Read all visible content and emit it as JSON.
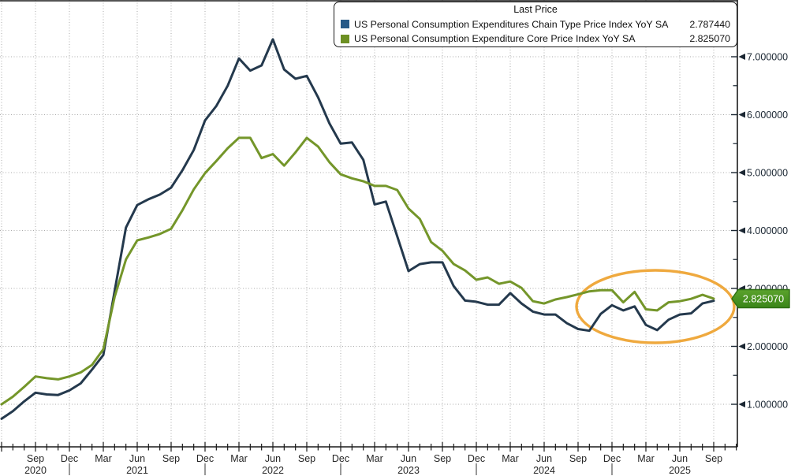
{
  "legend": {
    "title": "Last Price",
    "series": [
      {
        "label": "US Personal Consumption Expenditures Chain Type Price Index YoY SA",
        "value": "2.787440",
        "color": "#275a87"
      },
      {
        "label": "US Personal Consumption Expenditure Core Price Index YoY SA",
        "value": "2.825070",
        "color": "#6d9023"
      }
    ]
  },
  "price_tag": {
    "value": "2.825070",
    "fill_top": "#5ba32c",
    "fill_bottom": "#3a8519",
    "border": "#2d6e12"
  },
  "annotation": {
    "ellipse_color": "#efa93e"
  },
  "axis": {
    "y_labels": [
      "7.000000",
      "6.000000",
      "5.000000",
      "4.000000",
      "3.000000",
      "2.000000",
      "1.000000"
    ],
    "x_months": [
      "Sep",
      "Dec",
      "Mar",
      "Jun",
      "Sep",
      "Dec",
      "Mar",
      "Jun",
      "Sep",
      "Dec",
      "Mar",
      "Jun",
      "Sep",
      "Dec",
      "Mar",
      "Jun",
      "Sep",
      "Dec",
      "Mar",
      "Jun",
      "Sep"
    ],
    "x_years": [
      {
        "label": "2020",
        "tick": 1
      },
      {
        "label": "2021",
        "tick": 4
      },
      {
        "label": "2022",
        "tick": 8
      },
      {
        "label": "2023",
        "tick": 12
      },
      {
        "label": "2024",
        "tick": 16
      },
      {
        "label": "2025",
        "tick": 20
      }
    ],
    "year_divider_ticks": [
      2,
      6,
      10,
      14,
      18
    ]
  },
  "chart_data": {
    "type": "line",
    "title": "Last Price",
    "xlabel": "",
    "ylabel": "",
    "grid": true,
    "legend_position": "top",
    "y_axis_side": "right",
    "y_axis_range": [
      1,
      7
    ],
    "y_tick_step": 1,
    "x": [
      "2020-06",
      "2020-07",
      "2020-08",
      "2020-09",
      "2020-10",
      "2020-11",
      "2020-12",
      "2021-01",
      "2021-02",
      "2021-03",
      "2021-04",
      "2021-05",
      "2021-06",
      "2021-07",
      "2021-08",
      "2021-09",
      "2021-10",
      "2021-11",
      "2021-12",
      "2022-01",
      "2022-02",
      "2022-03",
      "2022-04",
      "2022-05",
      "2022-06",
      "2022-07",
      "2022-08",
      "2022-09",
      "2022-10",
      "2022-11",
      "2022-12",
      "2023-01",
      "2023-02",
      "2023-03",
      "2023-04",
      "2023-05",
      "2023-06",
      "2023-07",
      "2023-08",
      "2023-09",
      "2023-10",
      "2023-11",
      "2023-12",
      "2024-01",
      "2024-02",
      "2024-03",
      "2024-04",
      "2024-05",
      "2024-06",
      "2024-07",
      "2024-08",
      "2024-09",
      "2024-10",
      "2024-11",
      "2024-12",
      "2025-01",
      "2025-02",
      "2025-03",
      "2025-04",
      "2025-05",
      "2025-06",
      "2025-07",
      "2025-08",
      "2025-09"
    ],
    "series": [
      {
        "name": "US Personal Consumption Expenditures Chain Type Price Index YoY SA",
        "color": "#24394d",
        "last_price": 2.78744,
        "values": [
          0.75,
          0.88,
          1.05,
          1.2,
          1.17,
          1.16,
          1.24,
          1.36,
          1.6,
          1.85,
          2.95,
          4.05,
          4.44,
          4.54,
          4.62,
          4.74,
          5.04,
          5.39,
          5.9,
          6.15,
          6.5,
          6.97,
          6.76,
          6.85,
          7.3,
          6.78,
          6.62,
          6.67,
          6.3,
          5.85,
          5.5,
          5.52,
          5.22,
          4.45,
          4.5,
          3.9,
          3.3,
          3.42,
          3.45,
          3.45,
          3.04,
          2.79,
          2.77,
          2.72,
          2.72,
          2.92,
          2.74,
          2.6,
          2.55,
          2.55,
          2.4,
          2.3,
          2.27,
          2.56,
          2.71,
          2.62,
          2.69,
          2.37,
          2.28,
          2.46,
          2.55,
          2.57,
          2.74,
          2.787
        ]
      },
      {
        "name": "US Personal Consumption Expenditure Core Price Index YoY SA",
        "color": "#74962a",
        "last_price": 2.82507,
        "values": [
          1.0,
          1.13,
          1.3,
          1.48,
          1.45,
          1.43,
          1.48,
          1.55,
          1.68,
          1.95,
          2.85,
          3.5,
          3.83,
          3.88,
          3.94,
          4.03,
          4.35,
          4.71,
          4.99,
          5.2,
          5.42,
          5.6,
          5.6,
          5.25,
          5.32,
          5.12,
          5.35,
          5.6,
          5.45,
          5.18,
          4.97,
          4.9,
          4.85,
          4.77,
          4.77,
          4.7,
          4.38,
          4.2,
          3.8,
          3.65,
          3.42,
          3.31,
          3.15,
          3.19,
          3.08,
          3.12,
          3.01,
          2.78,
          2.74,
          2.81,
          2.85,
          2.9,
          2.95,
          2.97,
          2.97,
          2.76,
          2.94,
          2.64,
          2.62,
          2.76,
          2.78,
          2.82,
          2.89,
          2.825
        ]
      }
    ],
    "annotations": [
      {
        "type": "ellipse",
        "note": "highlight of late-2024 to 2025 period",
        "color": "#efa93e"
      }
    ]
  }
}
